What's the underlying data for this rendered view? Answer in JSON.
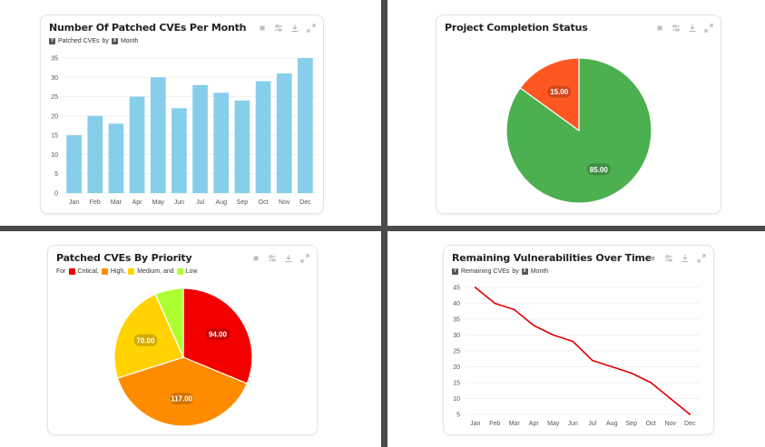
{
  "cards": {
    "cves_per_month": {
      "title": "Number Of Patched CVEs Per Month",
      "subtitle_metric": "Patched CVEs",
      "subtitle_by": "by",
      "subtitle_dim": "Month"
    },
    "project_status": {
      "title": "Project Completion Status"
    },
    "cves_priority": {
      "title": "Patched CVEs By Priority",
      "legend_prefix": "For",
      "legend_items": [
        {
          "label": "Critical,",
          "color": "#f20000"
        },
        {
          "label": "High,",
          "color": "#ff8c00"
        },
        {
          "label": "Medium, and",
          "color": "#ffd200"
        },
        {
          "label": "Low",
          "color": "#adff2f"
        }
      ]
    },
    "remaining_vulns": {
      "title": "Remaining Vulnerabilities Over Time",
      "subtitle_metric": "Remaining CVEs",
      "subtitle_by": "by",
      "subtitle_dim": "Month"
    }
  },
  "toolbar_icons": [
    "sparkle-settings-icon",
    "sliders-icon",
    "download-icon",
    "expand-icon"
  ],
  "chart_data": [
    {
      "type": "bar",
      "title": "Number Of Patched CVEs Per Month",
      "categories": [
        "Jan",
        "Feb",
        "Mar",
        "Apr",
        "May",
        "Jun",
        "Jul",
        "Aug",
        "Sep",
        "Oct",
        "Nov",
        "Dec"
      ],
      "values": [
        15,
        20,
        18,
        25,
        30,
        22,
        28,
        26,
        24,
        29,
        31,
        35
      ],
      "ylim": [
        0,
        35
      ],
      "yticks": [
        0,
        5,
        10,
        15,
        20,
        25,
        30,
        35
      ],
      "color": "#87ceeb",
      "grid": true
    },
    {
      "type": "pie",
      "title": "Project Completion Status",
      "slices": [
        {
          "value": 85.0,
          "label": "85.00",
          "color": "#4caf50"
        },
        {
          "value": 15.0,
          "label": "15.00",
          "color": "#ff5722"
        }
      ]
    },
    {
      "type": "pie",
      "title": "Patched CVEs By Priority",
      "slices": [
        {
          "name": "Critical",
          "value": 94.0,
          "label": "94.00",
          "color": "#f20000"
        },
        {
          "name": "High",
          "value": 117.0,
          "label": "117.00",
          "color": "#ff8c00"
        },
        {
          "name": "Medium",
          "value": 70.0,
          "label": "70.00",
          "color": "#ffd200"
        },
        {
          "name": "Low",
          "value": 20,
          "label": "",
          "color": "#adff2f"
        }
      ]
    },
    {
      "type": "line",
      "title": "Remaining Vulnerabilities Over Time",
      "categories": [
        "Jan",
        "Feb",
        "Mar",
        "Apr",
        "May",
        "Jun",
        "Jul",
        "Aug",
        "Sep",
        "Oct",
        "Nov",
        "Dec"
      ],
      "values": [
        45,
        40,
        38,
        33,
        30,
        28,
        22,
        20,
        18,
        15,
        10,
        5
      ],
      "ylim": [
        5,
        45
      ],
      "yticks": [
        5,
        10,
        15,
        20,
        25,
        30,
        35,
        40,
        45
      ],
      "color": "#e00000",
      "grid": true
    }
  ]
}
